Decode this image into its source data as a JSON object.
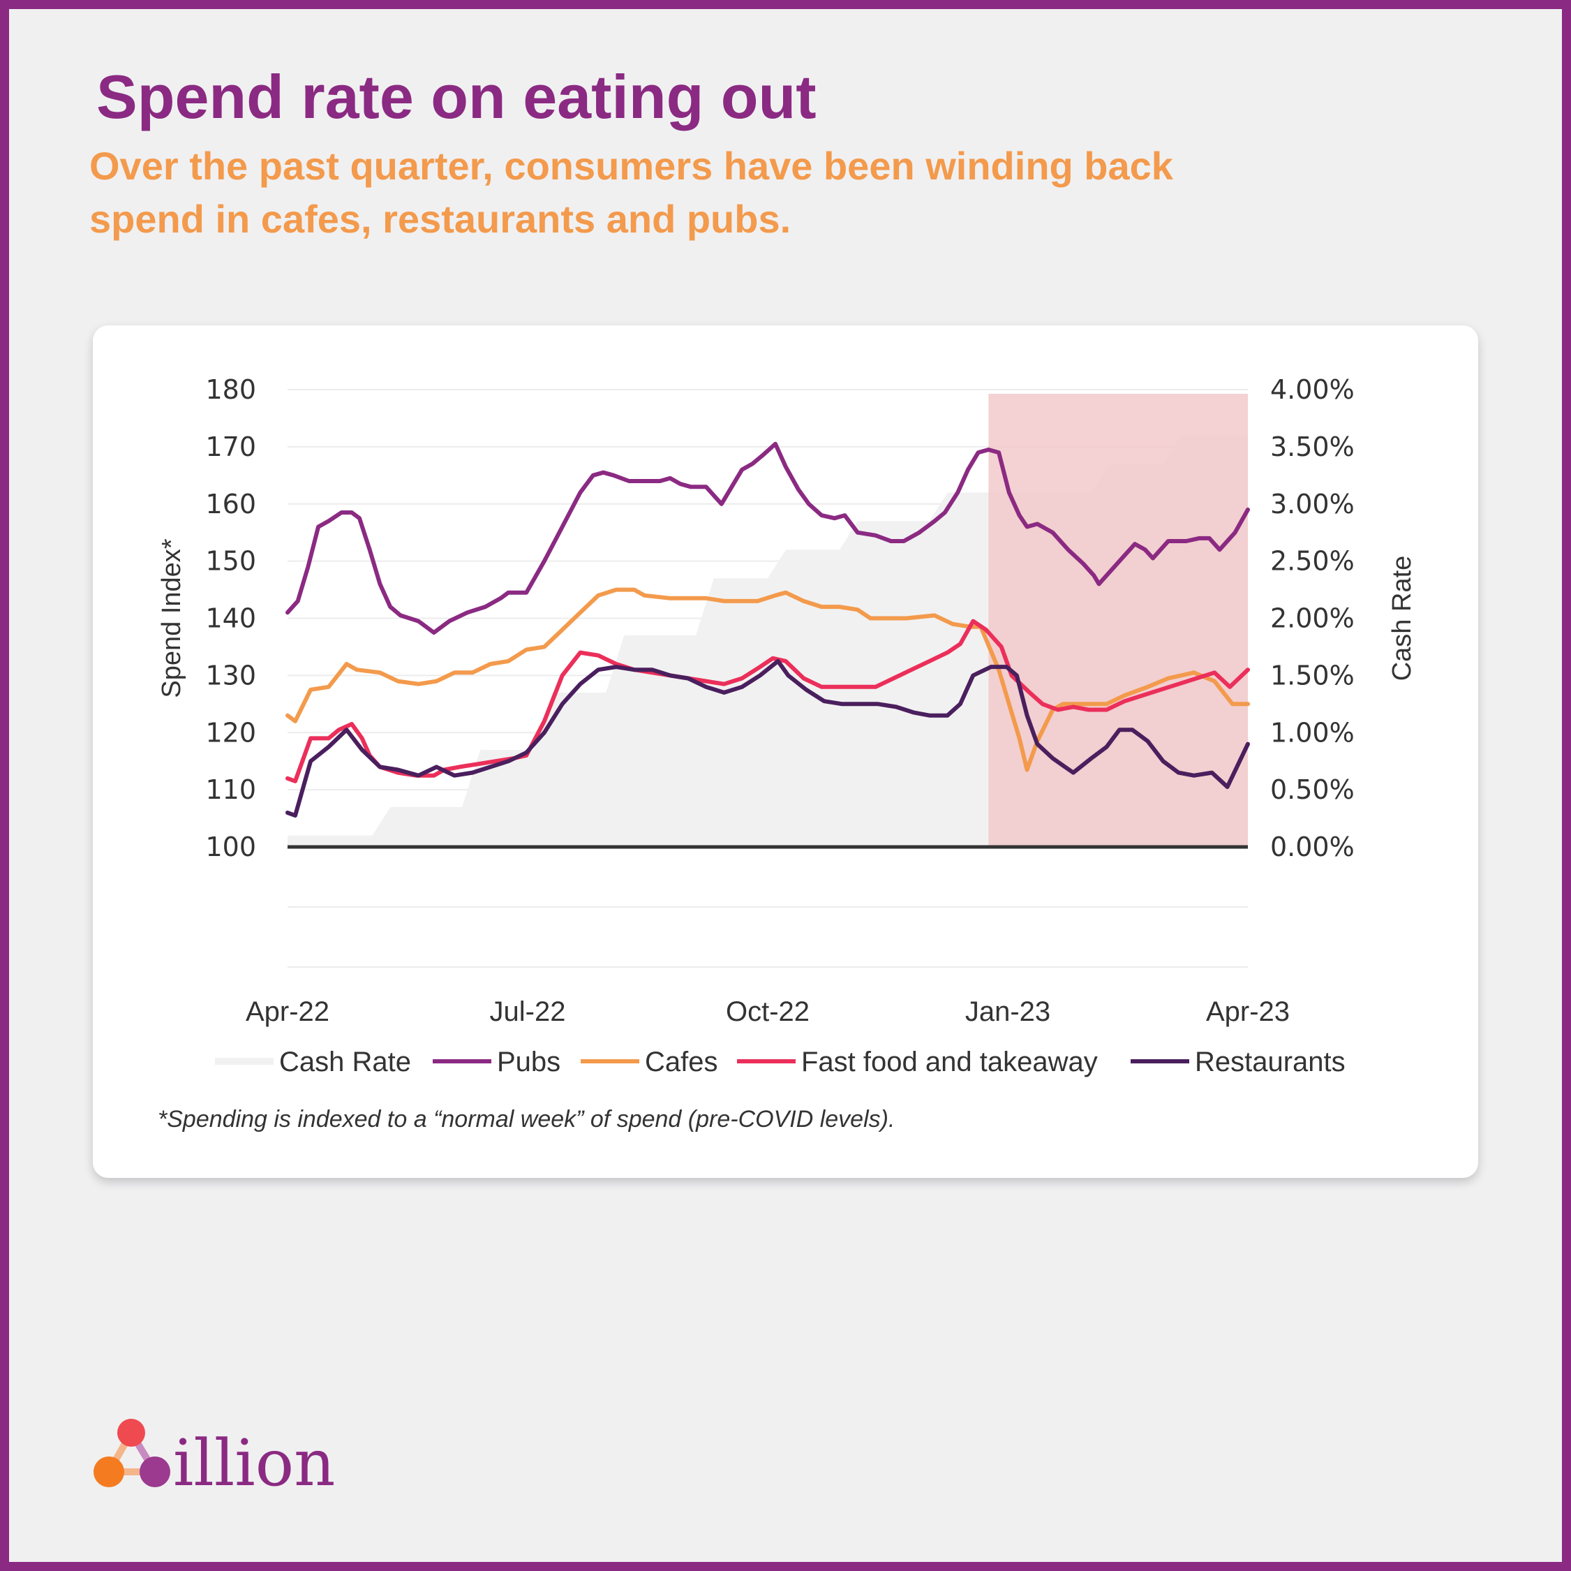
{
  "title": "Spend rate on eating out",
  "subtitle": "Over the past quarter, consumers have been winding back spend in cafes, restaurants and pubs.",
  "footnote": "*Spending is indexed to a “normal week” of spend (pre-COVID levels).",
  "brand": {
    "name": "illion",
    "icon": "illion-triangle-dots-icon"
  },
  "colors": {
    "purple": "#8b2a82",
    "orange": "#f39a4c",
    "pink": "#eb2f5a",
    "dark_purple": "#4a1f5e",
    "cash_rate": "#f1f1f1",
    "highlight": "#f2c9ca"
  },
  "chart_data": {
    "type": "line",
    "x_ticks": [
      "Apr-22",
      "Jul-22",
      "Oct-22",
      "Jan-23",
      "Apr-23"
    ],
    "xlim": [
      "2022-04-01",
      "2023-04-10"
    ],
    "y_left": {
      "label": "Spend Index*",
      "ticks": [
        "180",
        "170",
        "160",
        "150",
        "140",
        "130",
        "120",
        "110",
        "100"
      ],
      "range": [
        100,
        180
      ]
    },
    "y_right": {
      "label": "Cash Rate",
      "ticks": [
        "4.00%",
        "3.50%",
        "3.00%",
        "2.50%",
        "2.00%",
        "1.50%",
        "1.00%",
        "0.50%",
        "0.00%"
      ],
      "range": [
        0,
        4
      ]
    },
    "highlight_period": [
      "2022-12-30",
      "2023-04-10"
    ],
    "grid": true,
    "legend_position": "bottom",
    "cash_rate": {
      "name": "Cash Rate",
      "axis": "right",
      "steps": [
        [
          "2022-04-01",
          0.1
        ],
        [
          "2022-05-04",
          0.35
        ],
        [
          "2022-06-08",
          0.85
        ],
        [
          "2022-07-06",
          1.35
        ],
        [
          "2022-08-03",
          1.85
        ],
        [
          "2022-09-07",
          2.35
        ],
        [
          "2022-10-05",
          2.6
        ],
        [
          "2022-11-02",
          2.85
        ],
        [
          "2022-12-07",
          3.1
        ],
        [
          "2023-02-08",
          3.35
        ],
        [
          "2023-03-08",
          3.6
        ],
        [
          "2023-04-10",
          3.6
        ]
      ]
    },
    "series": [
      {
        "name": "Pubs",
        "color": "#8b2a82",
        "points": [
          [
            "2022-04-01",
            141
          ],
          [
            "2022-04-05",
            143
          ],
          [
            "2022-04-09",
            149
          ],
          [
            "2022-04-13",
            156
          ],
          [
            "2022-04-17",
            157
          ],
          [
            "2022-04-22",
            158.5
          ],
          [
            "2022-04-26",
            158.5
          ],
          [
            "2022-04-29",
            157.5
          ],
          [
            "2022-05-03",
            152
          ],
          [
            "2022-05-07",
            146
          ],
          [
            "2022-05-11",
            142
          ],
          [
            "2022-05-15",
            140.5
          ],
          [
            "2022-05-22",
            139.5
          ],
          [
            "2022-05-28",
            137.5
          ],
          [
            "2022-06-03",
            139.5
          ],
          [
            "2022-06-10",
            141
          ],
          [
            "2022-06-17",
            142
          ],
          [
            "2022-06-23",
            143.5
          ],
          [
            "2022-06-26",
            144.5
          ],
          [
            "2022-07-03",
            144.5
          ],
          [
            "2022-07-10",
            150
          ],
          [
            "2022-07-17",
            156
          ],
          [
            "2022-07-24",
            162
          ],
          [
            "2022-07-29",
            165
          ],
          [
            "2022-08-02",
            165.5
          ],
          [
            "2022-08-06",
            165
          ],
          [
            "2022-08-12",
            164
          ],
          [
            "2022-08-19",
            164
          ],
          [
            "2022-08-24",
            164
          ],
          [
            "2022-08-28",
            164.5
          ],
          [
            "2022-09-01",
            163.5
          ],
          [
            "2022-09-05",
            163
          ],
          [
            "2022-09-11",
            163
          ],
          [
            "2022-09-14",
            161.5
          ],
          [
            "2022-09-17",
            160
          ],
          [
            "2022-09-21",
            163
          ],
          [
            "2022-09-25",
            166
          ],
          [
            "2022-09-29",
            167
          ],
          [
            "2022-10-03",
            168.5
          ],
          [
            "2022-10-08",
            170.5
          ],
          [
            "2022-10-12",
            166.5
          ],
          [
            "2022-10-17",
            162.5
          ],
          [
            "2022-10-21",
            160
          ],
          [
            "2022-10-26",
            158
          ],
          [
            "2022-10-31",
            157.5
          ],
          [
            "2022-11-04",
            158
          ],
          [
            "2022-11-09",
            155
          ],
          [
            "2022-11-16",
            154.5
          ],
          [
            "2022-11-22",
            153.5
          ],
          [
            "2022-11-27",
            153.5
          ],
          [
            "2022-12-03",
            155
          ],
          [
            "2022-12-09",
            157
          ],
          [
            "2022-12-13",
            158.5
          ],
          [
            "2022-12-18",
            162
          ],
          [
            "2022-12-22",
            166
          ],
          [
            "2022-12-26",
            169
          ],
          [
            "2022-12-30",
            169.5
          ],
          [
            "2023-01-03",
            169
          ],
          [
            "2023-01-07",
            162
          ],
          [
            "2023-01-11",
            158
          ],
          [
            "2023-01-14",
            156
          ],
          [
            "2023-01-18",
            156.5
          ],
          [
            "2023-01-24",
            155
          ],
          [
            "2023-01-30",
            152
          ],
          [
            "2023-02-05",
            149.5
          ],
          [
            "2023-02-09",
            147.5
          ],
          [
            "2023-02-11",
            146
          ],
          [
            "2023-02-16",
            148.5
          ],
          [
            "2023-02-21",
            151
          ],
          [
            "2023-02-25",
            153
          ],
          [
            "2023-03-01",
            152
          ],
          [
            "2023-03-04",
            150.5
          ],
          [
            "2023-03-10",
            153.5
          ],
          [
            "2023-03-17",
            153.5
          ],
          [
            "2023-03-22",
            154
          ],
          [
            "2023-03-26",
            154
          ],
          [
            "2023-03-30",
            152
          ],
          [
            "2023-04-05",
            155
          ],
          [
            "2023-04-10",
            159
          ]
        ]
      },
      {
        "name": "Cafes",
        "color": "#f39a4c",
        "points": [
          [
            "2022-04-01",
            123
          ],
          [
            "2022-04-04",
            122
          ],
          [
            "2022-04-10",
            127.5
          ],
          [
            "2022-04-17",
            128
          ],
          [
            "2022-04-24",
            132
          ],
          [
            "2022-04-28",
            131
          ],
          [
            "2022-05-07",
            130.5
          ],
          [
            "2022-05-14",
            129
          ],
          [
            "2022-05-22",
            128.5
          ],
          [
            "2022-05-29",
            129
          ],
          [
            "2022-06-05",
            130.5
          ],
          [
            "2022-06-12",
            130.5
          ],
          [
            "2022-06-19",
            132
          ],
          [
            "2022-06-26",
            132.5
          ],
          [
            "2022-07-03",
            134.5
          ],
          [
            "2022-07-10",
            135
          ],
          [
            "2022-07-17",
            138
          ],
          [
            "2022-07-24",
            141
          ],
          [
            "2022-07-31",
            144
          ],
          [
            "2022-08-07",
            145
          ],
          [
            "2022-08-14",
            145
          ],
          [
            "2022-08-18",
            144
          ],
          [
            "2022-08-28",
            143.5
          ],
          [
            "2022-09-05",
            143.5
          ],
          [
            "2022-09-11",
            143.5
          ],
          [
            "2022-09-18",
            143
          ],
          [
            "2022-09-25",
            143
          ],
          [
            "2022-10-01",
            143
          ],
          [
            "2022-10-08",
            144
          ],
          [
            "2022-10-12",
            144.5
          ],
          [
            "2022-10-19",
            143
          ],
          [
            "2022-10-26",
            142
          ],
          [
            "2022-11-02",
            142
          ],
          [
            "2022-11-09",
            141.5
          ],
          [
            "2022-11-14",
            140
          ],
          [
            "2022-11-28",
            140
          ],
          [
            "2022-12-09",
            140.5
          ],
          [
            "2022-12-16",
            139
          ],
          [
            "2022-12-23",
            138.5
          ],
          [
            "2022-12-27",
            138.5
          ],
          [
            "2023-01-03",
            131
          ],
          [
            "2023-01-09",
            122
          ],
          [
            "2023-01-11",
            119
          ],
          [
            "2023-01-14",
            113.5
          ],
          [
            "2023-01-18",
            118.5
          ],
          [
            "2023-01-24",
            124
          ],
          [
            "2023-01-28",
            125
          ],
          [
            "2023-02-04",
            125
          ],
          [
            "2023-02-14",
            125
          ],
          [
            "2023-02-21",
            126.5
          ],
          [
            "2023-03-02",
            128
          ],
          [
            "2023-03-10",
            129.5
          ],
          [
            "2023-03-20",
            130.5
          ],
          [
            "2023-03-28",
            129
          ],
          [
            "2023-04-04",
            125
          ],
          [
            "2023-04-10",
            125
          ]
        ]
      },
      {
        "name": "Fast food and takeaway",
        "color": "#eb2f5a",
        "points": [
          [
            "2022-04-01",
            112
          ],
          [
            "2022-04-04",
            111.5
          ],
          [
            "2022-04-10",
            119
          ],
          [
            "2022-04-17",
            119
          ],
          [
            "2022-04-21",
            120.5
          ],
          [
            "2022-04-26",
            121.5
          ],
          [
            "2022-04-30",
            119
          ],
          [
            "2022-05-03",
            116
          ],
          [
            "2022-05-07",
            114
          ],
          [
            "2022-05-14",
            113
          ],
          [
            "2022-05-21",
            112.5
          ],
          [
            "2022-05-28",
            112.5
          ],
          [
            "2022-06-01",
            113.5
          ],
          [
            "2022-06-07",
            114
          ],
          [
            "2022-06-14",
            114.5
          ],
          [
            "2022-06-21",
            115
          ],
          [
            "2022-06-28",
            115.5
          ],
          [
            "2022-07-03",
            116
          ],
          [
            "2022-07-10",
            122
          ],
          [
            "2022-07-17",
            130
          ],
          [
            "2022-07-24",
            134
          ],
          [
            "2022-07-31",
            133.5
          ],
          [
            "2022-08-07",
            132
          ],
          [
            "2022-08-14",
            131
          ],
          [
            "2022-08-21",
            130.5
          ],
          [
            "2022-08-28",
            130
          ],
          [
            "2022-09-04",
            129.5
          ],
          [
            "2022-09-11",
            129
          ],
          [
            "2022-09-18",
            128.5
          ],
          [
            "2022-09-25",
            129.5
          ],
          [
            "2022-10-02",
            131.5
          ],
          [
            "2022-10-07",
            133
          ],
          [
            "2022-10-12",
            132.5
          ],
          [
            "2022-10-19",
            129.5
          ],
          [
            "2022-10-26",
            128
          ],
          [
            "2022-11-02",
            128
          ],
          [
            "2022-11-09",
            128
          ],
          [
            "2022-11-16",
            128
          ],
          [
            "2022-11-23",
            129.5
          ],
          [
            "2022-11-30",
            131
          ],
          [
            "2022-12-07",
            132.5
          ],
          [
            "2022-12-14",
            134
          ],
          [
            "2022-12-19",
            135.5
          ],
          [
            "2022-12-24",
            139.5
          ],
          [
            "2022-12-29",
            138
          ],
          [
            "2023-01-04",
            135
          ],
          [
            "2023-01-08",
            130
          ],
          [
            "2023-01-15",
            127
          ],
          [
            "2023-01-20",
            125
          ],
          [
            "2023-01-26",
            124
          ],
          [
            "2023-02-01",
            124.5
          ],
          [
            "2023-02-07",
            124
          ],
          [
            "2023-02-14",
            124
          ],
          [
            "2023-02-21",
            125.5
          ],
          [
            "2023-02-28",
            126.5
          ],
          [
            "2023-03-07",
            127.5
          ],
          [
            "2023-03-14",
            128.5
          ],
          [
            "2023-03-21",
            129.5
          ],
          [
            "2023-03-28",
            130.5
          ],
          [
            "2023-04-03",
            128
          ],
          [
            "2023-04-10",
            131
          ]
        ]
      },
      {
        "name": "Restaurants",
        "color": "#4a1f5e",
        "points": [
          [
            "2022-04-01",
            106
          ],
          [
            "2022-04-04",
            105.5
          ],
          [
            "2022-04-10",
            115
          ],
          [
            "2022-04-17",
            117.5
          ],
          [
            "2022-04-24",
            120.5
          ],
          [
            "2022-04-30",
            117
          ],
          [
            "2022-05-07",
            114
          ],
          [
            "2022-05-14",
            113.5
          ],
          [
            "2022-05-22",
            112.5
          ],
          [
            "2022-05-29",
            114
          ],
          [
            "2022-06-05",
            112.5
          ],
          [
            "2022-06-12",
            113
          ],
          [
            "2022-06-19",
            114
          ],
          [
            "2022-06-26",
            115
          ],
          [
            "2022-07-03",
            116.5
          ],
          [
            "2022-07-10",
            120
          ],
          [
            "2022-07-17",
            125
          ],
          [
            "2022-07-24",
            128.5
          ],
          [
            "2022-07-31",
            131
          ],
          [
            "2022-08-07",
            131.5
          ],
          [
            "2022-08-14",
            131
          ],
          [
            "2022-08-21",
            131
          ],
          [
            "2022-08-28",
            130
          ],
          [
            "2022-09-04",
            129.5
          ],
          [
            "2022-09-11",
            128
          ],
          [
            "2022-09-18",
            127
          ],
          [
            "2022-09-25",
            128
          ],
          [
            "2022-10-02",
            130
          ],
          [
            "2022-10-09",
            132.5
          ],
          [
            "2022-10-13",
            130
          ],
          [
            "2022-10-20",
            127.5
          ],
          [
            "2022-10-27",
            125.5
          ],
          [
            "2022-11-03",
            125
          ],
          [
            "2022-11-10",
            125
          ],
          [
            "2022-11-17",
            125
          ],
          [
            "2022-11-24",
            124.5
          ],
          [
            "2022-12-01",
            123.5
          ],
          [
            "2022-12-07",
            123
          ],
          [
            "2022-12-14",
            123
          ],
          [
            "2022-12-19",
            125
          ],
          [
            "2022-12-24",
            130
          ],
          [
            "2022-12-31",
            131.5
          ],
          [
            "2023-01-06",
            131.5
          ],
          [
            "2023-01-10",
            130
          ],
          [
            "2023-01-14",
            123
          ],
          [
            "2023-01-18",
            118
          ],
          [
            "2023-01-24",
            115.5
          ],
          [
            "2023-02-01",
            113
          ],
          [
            "2023-02-08",
            115.5
          ],
          [
            "2023-02-14",
            117.5
          ],
          [
            "2023-02-19",
            120.5
          ],
          [
            "2023-02-24",
            120.5
          ],
          [
            "2023-03-02",
            118.5
          ],
          [
            "2023-03-08",
            115
          ],
          [
            "2023-03-14",
            113
          ],
          [
            "2023-03-20",
            112.5
          ],
          [
            "2023-03-27",
            113
          ],
          [
            "2023-04-02",
            110.5
          ],
          [
            "2023-04-10",
            118
          ]
        ]
      }
    ]
  }
}
